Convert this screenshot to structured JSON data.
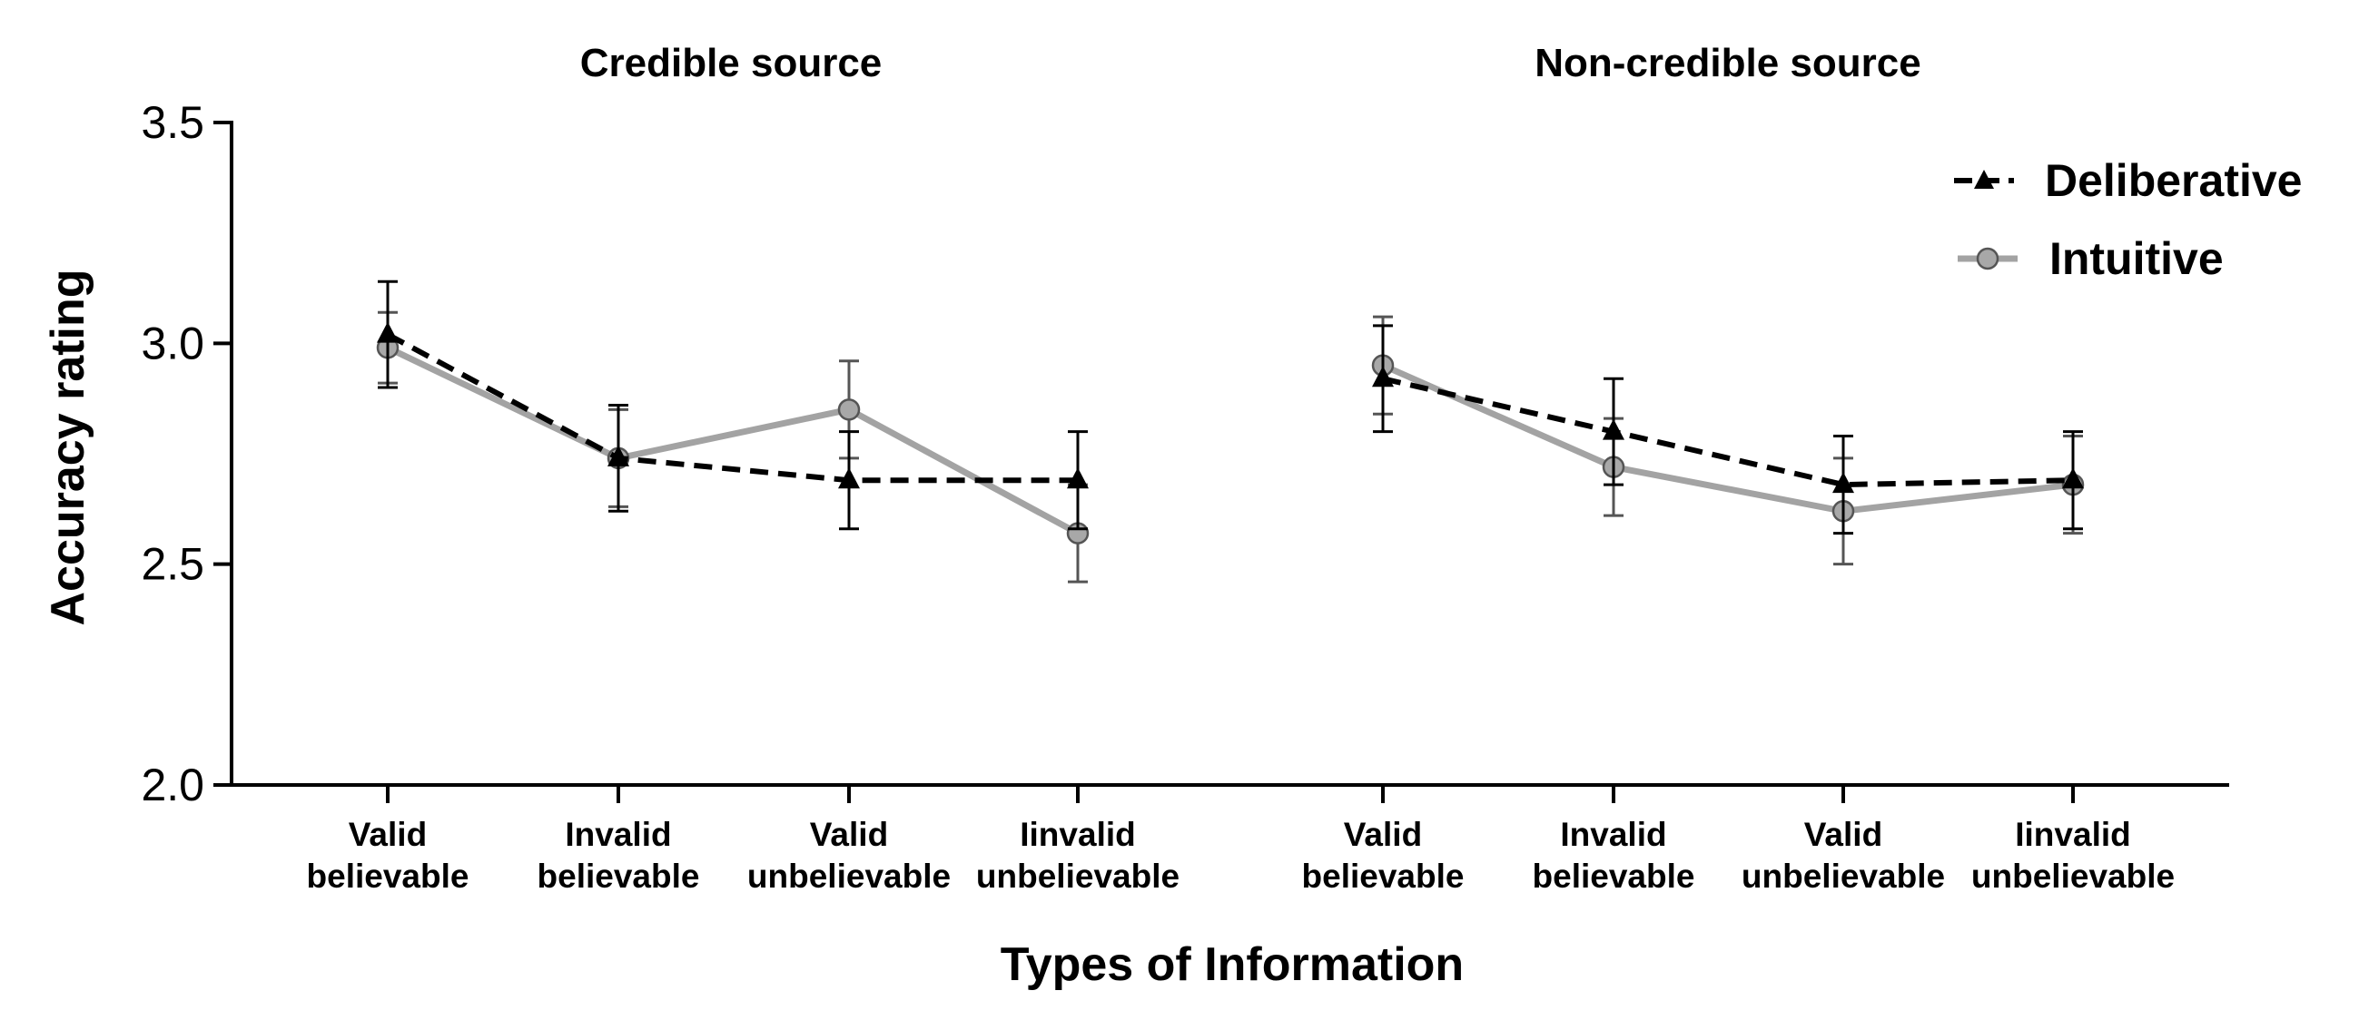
{
  "chart_data": {
    "type": "line",
    "ylabel": "Accuracy rating",
    "xlabel": "Types of Information",
    "ylim": [
      2.0,
      3.5
    ],
    "yticks": [
      "2.0",
      "2.5",
      "3.0",
      "3.5"
    ],
    "legend_position": "top-right",
    "categories": [
      "Valid\nbelievable",
      "Invalid\nbelievable",
      "Valid\nunbelievable",
      "Iinvalid\nunbelievable"
    ],
    "panels": [
      {
        "title": "Credible source",
        "series": [
          {
            "name": "Deliberative",
            "values": [
              3.02,
              2.74,
              2.69,
              2.69
            ],
            "error": [
              0.12,
              0.12,
              0.11,
              0.11
            ]
          },
          {
            "name": "Intuitive",
            "values": [
              2.99,
              2.74,
              2.85,
              2.57
            ],
            "error": [
              0.08,
              0.11,
              0.11,
              0.11
            ]
          }
        ]
      },
      {
        "title": "Non-credible source",
        "series": [
          {
            "name": "Deliberative",
            "values": [
              2.92,
              2.8,
              2.68,
              2.69
            ],
            "error": [
              0.12,
              0.12,
              0.11,
              0.11
            ]
          },
          {
            "name": "Intuitive",
            "values": [
              2.95,
              2.72,
              2.62,
              2.68
            ],
            "error": [
              0.11,
              0.11,
              0.12,
              0.11
            ]
          }
        ]
      }
    ],
    "styles": {
      "Deliberative": {
        "color": "#000000",
        "dashed": true,
        "marker": "triangle"
      },
      "Intuitive": {
        "color": "#a3a3a3",
        "marker_fill": "#a8a8a8",
        "marker_stroke": "#555555",
        "dashed": false,
        "marker": "circle"
      }
    }
  }
}
